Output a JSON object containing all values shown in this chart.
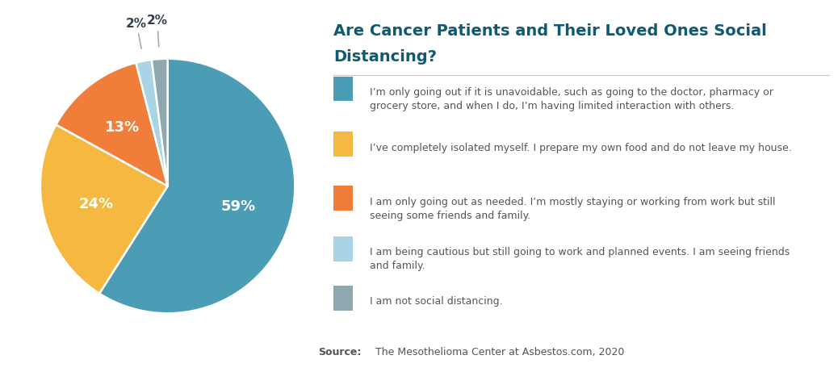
{
  "title_line1": "Are Cancer Patients and Their Loved Ones Social",
  "title_line2": "Distancing?",
  "title_color": "#0e5a73",
  "background_color": "#ffffff",
  "slices": [
    59,
    24,
    13,
    2,
    2
  ],
  "slice_colors": [
    "#4a9db5",
    "#f5b942",
    "#f07d3a",
    "#a8d4e6",
    "#8fa8b0"
  ],
  "slice_labels": [
    "59%",
    "24%",
    "13%",
    "2%",
    "2%"
  ],
  "pct_label_colors_big": "#ffffff",
  "pct_label_colors_small": "#2c3e50",
  "startangle": 90,
  "legend_colors": [
    "#4a9db5",
    "#f5b942",
    "#f07d3a",
    "#a8d4e6",
    "#8fa8b0"
  ],
  "legend_texts": [
    "I’m only going out if it is unavoidable, such as going to the doctor, pharmacy or\ngrocery store, and when I do, I’m having limited interaction with others.",
    "I’ve completely isolated myself. I prepare my own food and do not leave my house.",
    "I am only going out as needed. I’m mostly staying or working from work but still\nseeing some friends and family.",
    "I am being cautious but still going to work and planned events. I am seeing friends\nand family.",
    "I am not social distancing."
  ],
  "source_bold": "Source:",
  "source_text": "The Mesothelioma Center at Asbestos.com, 2020",
  "text_color": "#555555",
  "separator_color": "#cccccc",
  "callout_line_color": "#aaaaaa"
}
